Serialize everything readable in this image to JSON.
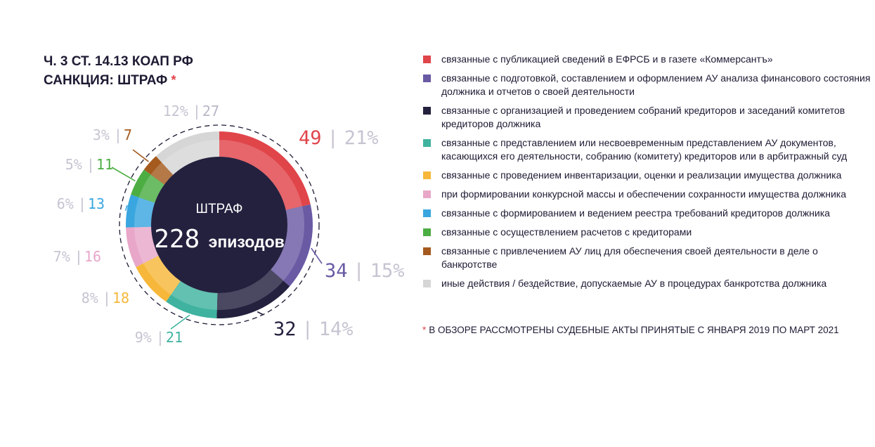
{
  "title": {
    "line1": "Ч. 3 СТ. 14.13 КОАП РФ",
    "line2": "САНКЦИЯ: ШТРАФ",
    "star": "*"
  },
  "center": {
    "label": "ШТРАФ",
    "total": "228",
    "unit": "эпизодов"
  },
  "footnote": {
    "star": "*",
    "text": "В ОБЗОРЕ РАССМОТРЕНЫ СУДЕБНЫЕ АКТЫ ПРИНЯТЫЕ С ЯНВАРЯ 2019 ПО МАРТ 2021"
  },
  "legend": [
    {
      "color": "#e0454a",
      "text": "связанные с публикацией сведений в ЕФРСБ и в газете «Коммерсантъ»"
    },
    {
      "color": "#6a5aa4",
      "text": "связанные с подготовкой, составлением и оформлением АУ анализа финансового состояния должника и отчетов о своей деятельности"
    },
    {
      "color": "#24213f",
      "text": "связанные с организацией и проведением собраний кредиторов и заседаний комитетов кредиторов должника"
    },
    {
      "color": "#3fb39f",
      "text": "связанные с представлением или несвоевременным представлением АУ документов, касающихся его деятельности, собранию (комитету) кредиторов или в арбитражный суд"
    },
    {
      "color": "#f6b73a",
      "text": "связанные с проведением инвентаризации, оценки и реализации имущества должника"
    },
    {
      "color": "#e8a7c9",
      "text": "при формировании конкурсной массы и обеспечении сохранности имущества должника"
    },
    {
      "color": "#3aa6df",
      "text": "связанные с формированием и ведением реестра требований кредиторов должника"
    },
    {
      "color": "#4cad43",
      "text": "связанные с осуществлением расчетов с кредиторами"
    },
    {
      "color": "#a55a1e",
      "text": "связанные с привлечением АУ лиц для обеспечения своей деятельности в деле о банкротстве"
    },
    {
      "color": "#d6d6d6",
      "text": "иные действия / бездействие, допускаемые АУ в процедурах банкротства должника"
    }
  ],
  "chart_data": {
    "type": "pie",
    "total": 228,
    "slices": [
      {
        "value": 49,
        "percent": "21%",
        "color": "#e0454a",
        "label_style": "value-first"
      },
      {
        "value": 34,
        "percent": "15%",
        "color": "#6a5aa4",
        "label_style": "value-first"
      },
      {
        "value": 32,
        "percent": "14%",
        "color": "#24213f",
        "label_style": "value-first"
      },
      {
        "value": 21,
        "percent": "9%",
        "color": "#3fb39f",
        "label_style": "percent-first"
      },
      {
        "value": 18,
        "percent": "8%",
        "color": "#f6b73a",
        "label_style": "percent-first"
      },
      {
        "value": 16,
        "percent": "7%",
        "color": "#e8a7c9",
        "label_style": "percent-first"
      },
      {
        "value": 13,
        "percent": "6%",
        "color": "#3aa6df",
        "label_style": "percent-first"
      },
      {
        "value": 11,
        "percent": "5%",
        "color": "#4cad43",
        "label_style": "percent-first"
      },
      {
        "value": 7,
        "percent": "3%",
        "color": "#a55a1e",
        "label_style": "percent-first"
      },
      {
        "value": 27,
        "percent": "12%",
        "color": "#d6d6d6",
        "label_style": "percent-first"
      }
    ]
  }
}
